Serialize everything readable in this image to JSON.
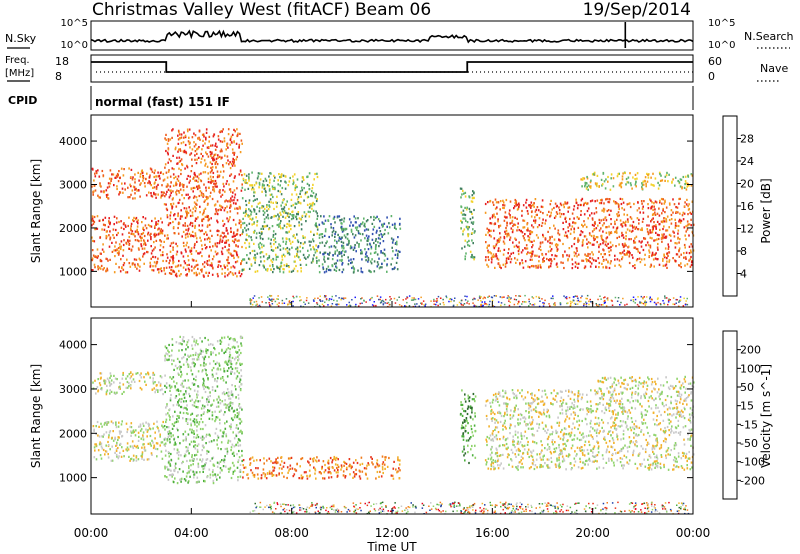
{
  "header": {
    "title": "Christmas Valley West (fitACF)",
    "beam": "Beam 06",
    "date": "19/Sep/2014"
  },
  "nsky_panel": {
    "left_label": "N.Sky",
    "right_label": "N.Search",
    "left_ticks": [
      "10^5",
      "10^0"
    ],
    "right_ticks": [
      "10^5",
      "10^0"
    ]
  },
  "freq_panel": {
    "left_label_1": "Freq.",
    "left_label_2": "[MHz]",
    "left_ticks": [
      "18",
      "8"
    ],
    "right_ticks": [
      "60",
      "0"
    ],
    "right_label": "Nave"
  },
  "cpid_panel": {
    "label": "CPID",
    "mode_text": "normal (fast) 151 IF"
  },
  "chart_data": [
    {
      "type": "heatmap",
      "name": "power",
      "ylabel": "Slant Range [km]",
      "yticks": [
        "1000",
        "2000",
        "3000",
        "4000"
      ],
      "ylim": [
        180,
        4600
      ],
      "colorbar_label": "Power [dB]",
      "colorbar_ticks": [
        "4",
        "8",
        "12",
        "16",
        "20",
        "24",
        "28"
      ],
      "colorbar_colors": [
        "#1a1aff",
        "#3050b0",
        "#3f7f5f",
        "#5fb36b",
        "#f2d22a",
        "#f59a1f",
        "#ef5a1a",
        "#e61e1e"
      ],
      "echo_regions": [
        {
          "t": [
            0.0,
            2.9
          ],
          "r": [
            1000,
            2300
          ],
          "level": 6
        },
        {
          "t": [
            0.0,
            2.9
          ],
          "r": [
            2700,
            3400
          ],
          "level": 6
        },
        {
          "t": [
            2.9,
            6.0
          ],
          "r": [
            900,
            4300
          ],
          "level": 6
        },
        {
          "t": [
            6.0,
            9.0
          ],
          "r": [
            1000,
            3300
          ],
          "level": 3
        },
        {
          "t": [
            9.0,
            12.3
          ],
          "r": [
            1000,
            2300
          ],
          "level": 2
        },
        {
          "t": [
            14.7,
            15.3
          ],
          "r": [
            1300,
            3000
          ],
          "level": 3
        },
        {
          "t": [
            15.7,
            24.0
          ],
          "r": [
            1100,
            2700
          ],
          "level": 6
        },
        {
          "t": [
            19.5,
            24.0
          ],
          "r": [
            2900,
            3300
          ],
          "level": 4
        }
      ]
    },
    {
      "type": "heatmap",
      "name": "velocity",
      "xlabel": "Time UT",
      "xticks": [
        "00:00",
        "04:00",
        "08:00",
        "12:00",
        "16:00",
        "20:00",
        "00:00"
      ],
      "ylabel": "Slant Range [km]",
      "yticks": [
        "1000",
        "2000",
        "3000",
        "4000"
      ],
      "ylim": [
        180,
        4600
      ],
      "colorbar_label": "Velocity [m s^-1]",
      "colorbar_ticks": [
        "200",
        "100",
        "50",
        "15",
        "-15",
        "-50",
        "-100",
        "-200"
      ],
      "colorbar_colors": [
        "#1c3fa8",
        "#2e6b2e",
        "#4caf3c",
        "#8ed36a",
        "#c8c8c8",
        "#f2b12a",
        "#f07a1a",
        "#e8341a",
        "#e8001a"
      ],
      "echo_regions": [
        {
          "t": [
            0.0,
            2.9
          ],
          "r": [
            1400,
            2300
          ],
          "level": 4
        },
        {
          "t": [
            0.0,
            2.9
          ],
          "r": [
            2900,
            3400
          ],
          "level": 4
        },
        {
          "t": [
            2.9,
            6.0
          ],
          "r": [
            900,
            4200
          ],
          "level": 3
        },
        {
          "t": [
            6.0,
            12.3
          ],
          "r": [
            1000,
            1500
          ],
          "level": 6
        },
        {
          "t": [
            14.7,
            15.3
          ],
          "r": [
            1300,
            3000
          ],
          "level": 2
        },
        {
          "t": [
            15.7,
            24.0
          ],
          "r": [
            1200,
            3000
          ],
          "level": 4
        },
        {
          "t": [
            20.0,
            24.0
          ],
          "r": [
            3000,
            3300
          ],
          "level": 4
        }
      ]
    }
  ]
}
